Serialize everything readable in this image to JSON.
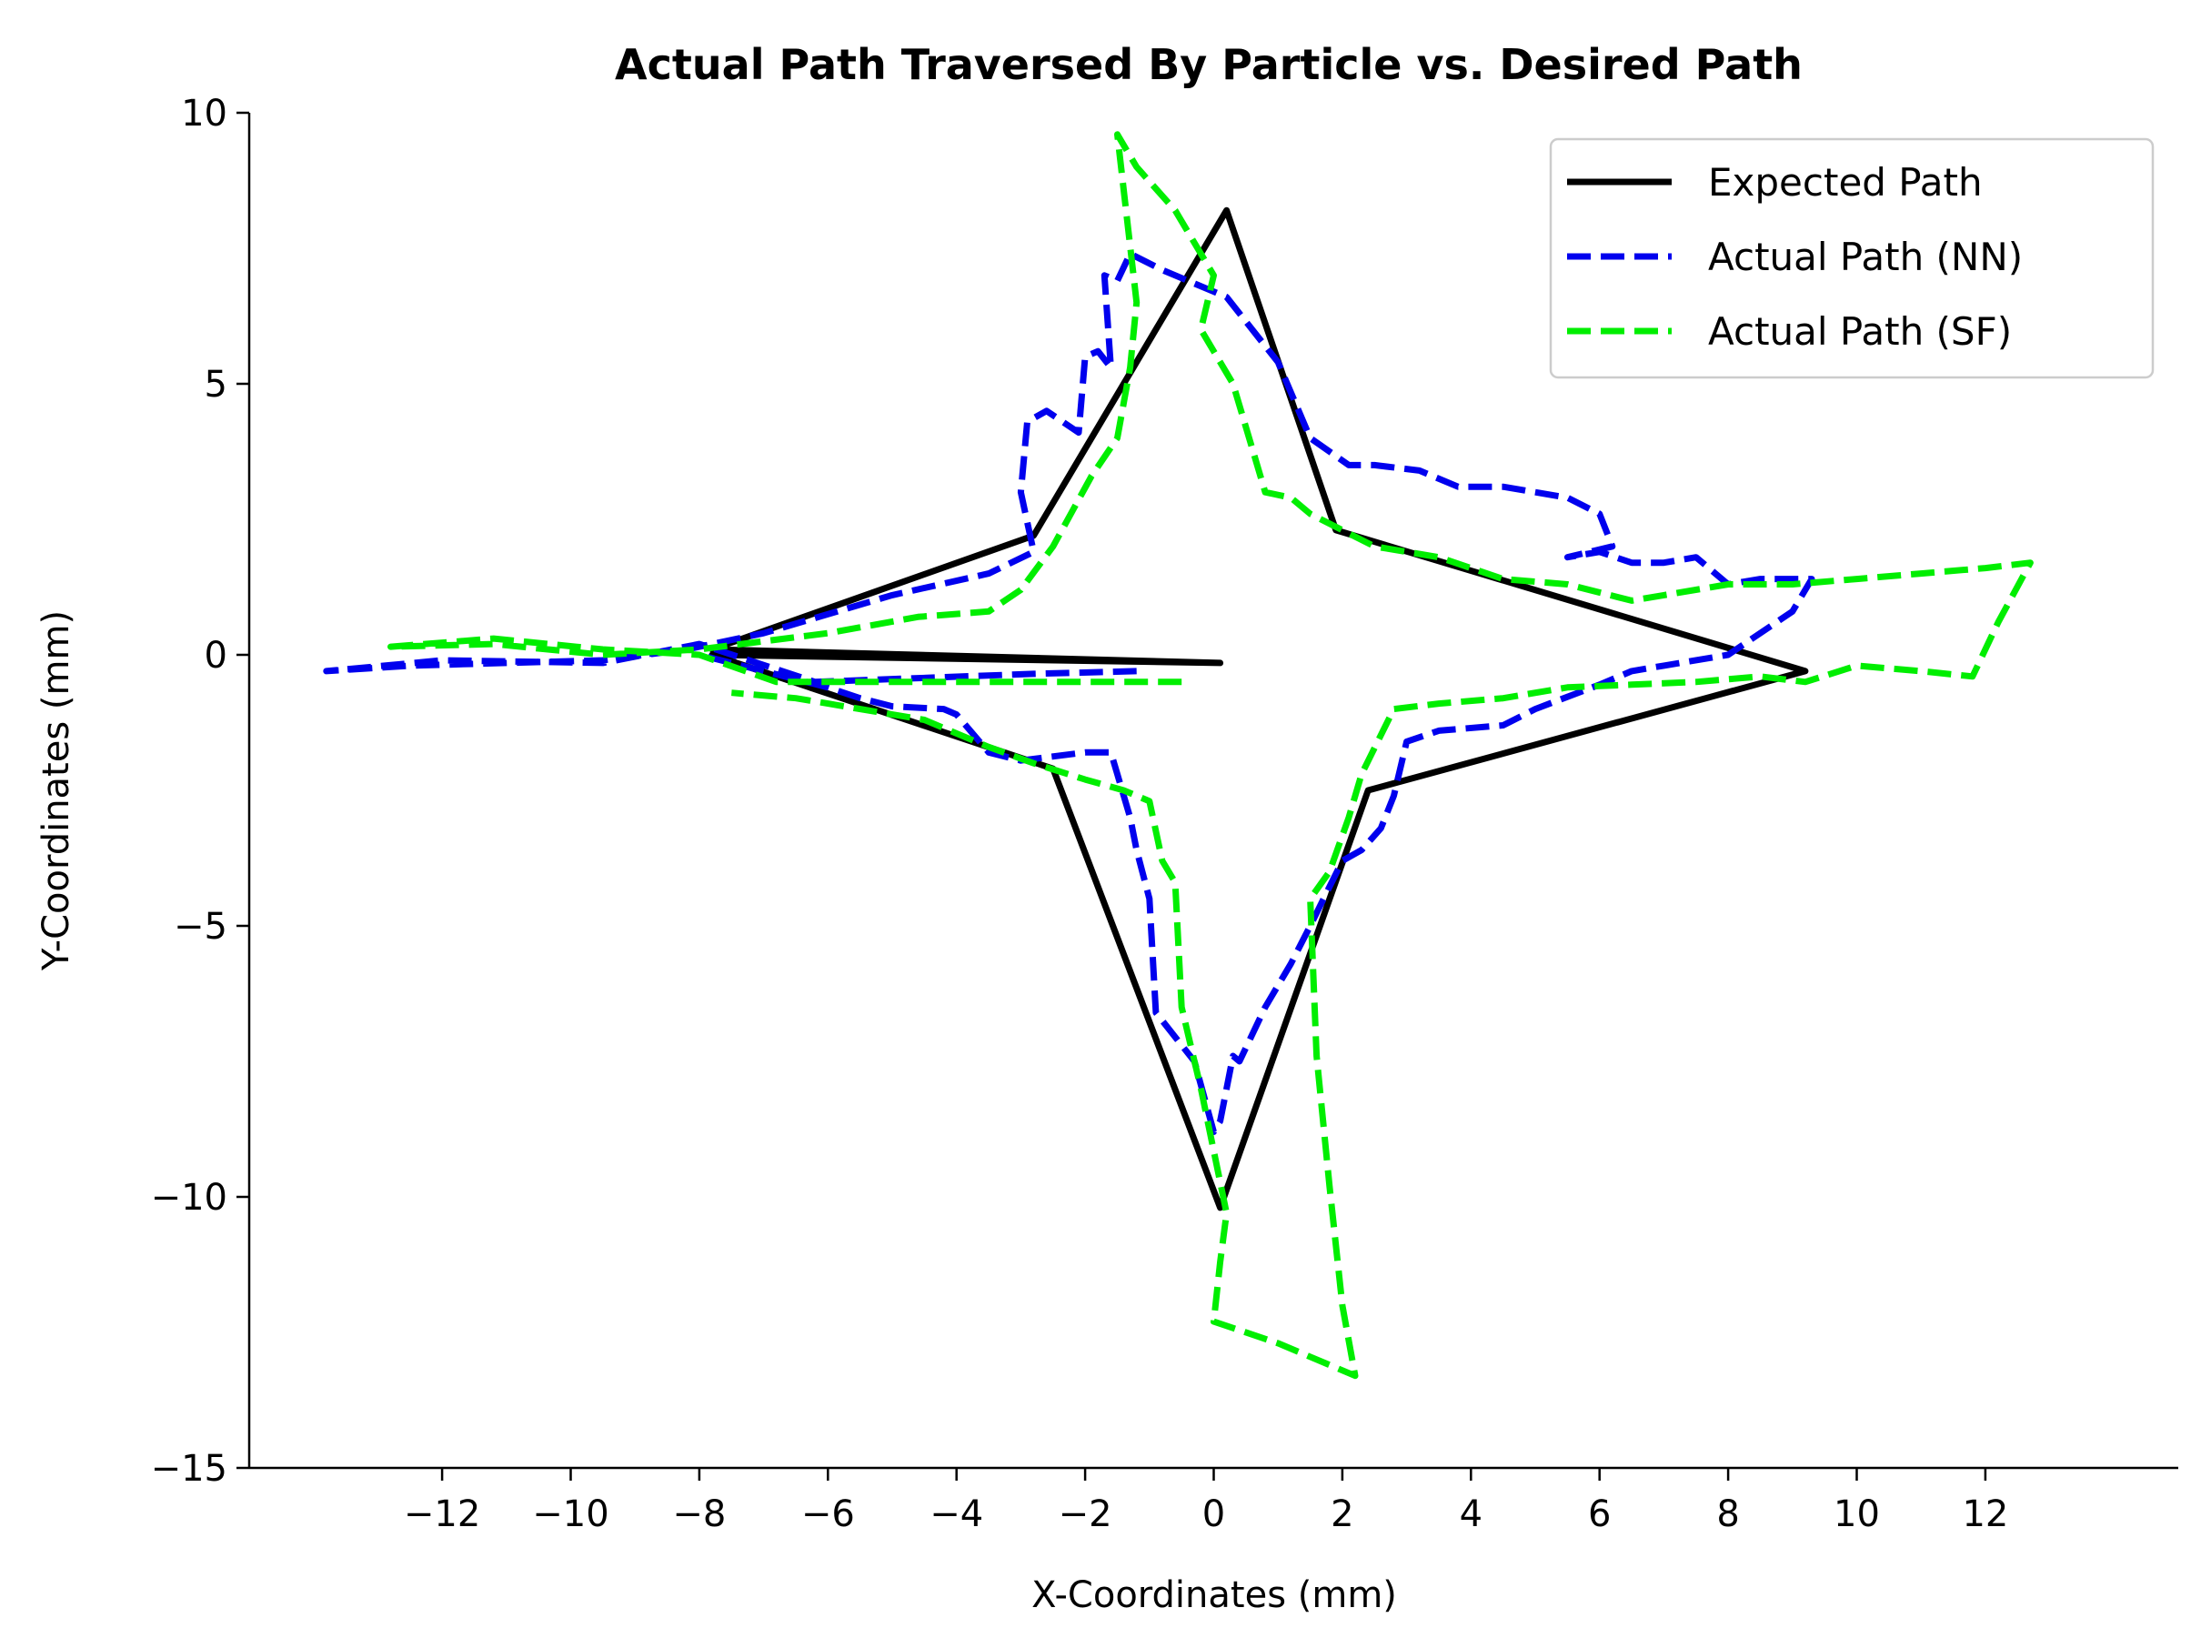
{
  "chart_data": {
    "type": "line",
    "title": "Actual Path Traversed By Particle vs. Desired Path",
    "xlabel": "X-Coordinates (mm)",
    "ylabel": "Y-Coordinates (mm)",
    "xlim": [
      -15,
      15
    ],
    "ylim": [
      -15,
      10
    ],
    "xticks": [
      -12,
      -10,
      -8,
      -6,
      -4,
      -2,
      0,
      2,
      4,
      6,
      8,
      10,
      12
    ],
    "yticks": [
      10,
      5,
      0,
      -5,
      -10,
      -15
    ],
    "xtick_labels": [
      "−12",
      "−10",
      "−8",
      "−6",
      "−4",
      "−2",
      "0",
      "2",
      "4",
      "6",
      "8",
      "10",
      "12"
    ],
    "ytick_labels": [
      "10",
      "5",
      "0",
      "−5",
      "−10",
      "−15"
    ],
    "grid": false,
    "legend_position": "top-right",
    "series": [
      {
        "name": "Expected Path",
        "color": "#000000",
        "style": "solid",
        "x": [
          0.1,
          -7.8,
          -2.8,
          0.2,
          1.9,
          9.2,
          2.4,
          0.1,
          -2.5,
          -7.8,
          0.1
        ],
        "y": [
          -0.15,
          0.1,
          2.2,
          8.2,
          2.3,
          -0.3,
          -2.5,
          -10.2,
          -2.1,
          0.0,
          -0.15
        ]
      },
      {
        "name": "Actual Path (NN)",
        "color": "#0000ee",
        "style": "dashed",
        "x": [
          -1.2,
          -2.8,
          -6.2,
          -8.0,
          -9.5,
          -12.0,
          -13.8,
          -12.5,
          -9.5,
          -8.2,
          -7.0,
          -5.0,
          -3.5,
          -2.8,
          -3.0,
          -2.9,
          -2.6,
          -2.1,
          -2.0,
          -1.8,
          -1.6,
          -1.7,
          -1.5,
          -1.3,
          -0.8,
          0.2,
          1.0,
          1.5,
          2.1,
          2.5,
          3.2,
          3.8,
          4.5,
          5.0,
          5.5,
          6.0,
          6.2,
          5.5,
          6.0,
          6.5,
          7.0,
          7.5,
          8.0,
          8.5,
          9.3,
          9.0,
          8.0,
          7.0,
          6.5,
          6.0,
          5.0,
          4.5,
          3.5,
          3.0,
          2.8,
          2.6,
          2.3,
          2.0,
          1.5,
          1.2,
          0.8,
          0.4,
          0.3,
          0.1,
          0.0,
          -0.3,
          -0.9,
          -1.0,
          -1.2,
          -1.3,
          -1.5,
          -1.6,
          -2.0,
          -3.0,
          -3.5,
          -4.0,
          -4.2,
          -5.0,
          -5.5,
          -6.0,
          -6.5,
          -8.0
        ],
        "y": [
          -0.3,
          -0.35,
          -0.5,
          0.2,
          -0.15,
          -0.1,
          -0.3,
          -0.2,
          -0.1,
          0.1,
          0.4,
          1.1,
          1.5,
          1.9,
          3.0,
          4.3,
          4.5,
          4.1,
          5.5,
          5.6,
          5.3,
          7.0,
          6.9,
          7.4,
          7.1,
          6.6,
          5.4,
          4.0,
          3.5,
          3.5,
          3.4,
          3.1,
          3.1,
          3.0,
          2.9,
          2.6,
          2.0,
          1.8,
          1.9,
          1.7,
          1.7,
          1.8,
          1.3,
          1.4,
          1.4,
          0.8,
          0.0,
          -0.2,
          -0.3,
          -0.55,
          -1.0,
          -1.3,
          -1.4,
          -1.6,
          -2.6,
          -3.2,
          -3.6,
          -3.8,
          -5.0,
          -5.7,
          -6.5,
          -7.5,
          -7.4,
          -8.6,
          -8.8,
          -7.5,
          -6.6,
          -4.5,
          -3.6,
          -3.0,
          -2.2,
          -1.8,
          -1.8,
          -1.95,
          -1.8,
          -1.1,
          -1.0,
          -0.95,
          -0.8,
          -0.6,
          -0.45,
          0.0
        ]
      },
      {
        "name": "Actual Path (SF)",
        "color": "#00ee00",
        "style": "dashed",
        "x": [
          -0.5,
          -3.5,
          -6.8,
          -8.0,
          -9.5,
          -11.2,
          -12.8,
          -11.2,
          -9.5,
          -8.0,
          -6.0,
          -4.6,
          -3.5,
          -3.0,
          -2.5,
          -1.9,
          -1.5,
          -1.3,
          -1.2,
          -1.5,
          -1.2,
          -0.6,
          0.0,
          -0.2,
          0.3,
          0.5,
          0.8,
          1.2,
          1.5,
          2.5,
          3.5,
          4.5,
          5.5,
          6.5,
          7.0,
          8.0,
          9.0,
          10.0,
          11.0,
          12.0,
          12.7,
          12.2,
          11.8,
          11.0,
          10.0,
          9.2,
          8.5,
          7.5,
          6.5,
          5.5,
          4.5,
          3.5,
          2.8,
          2.3,
          2.1,
          1.8,
          1.5,
          1.6,
          1.8,
          2.0,
          2.2,
          1.0,
          0.0,
          0.1,
          0.2,
          -0.2,
          -0.5,
          -0.6,
          -0.8,
          -1.0,
          -1.4,
          -2.0,
          -2.8,
          -3.5,
          -4.5,
          -6.0,
          -6.5,
          -7.5
        ],
        "y": [
          -0.5,
          -0.5,
          -0.5,
          0.0,
          0.1,
          0.3,
          0.15,
          0.2,
          0.0,
          0.1,
          0.4,
          0.7,
          0.8,
          1.2,
          2.0,
          3.3,
          4.0,
          5.3,
          6.5,
          9.6,
          9.0,
          8.2,
          7.0,
          6.0,
          5.0,
          4.2,
          3.0,
          2.9,
          2.6,
          2.0,
          1.8,
          1.4,
          1.3,
          1.0,
          1.1,
          1.3,
          1.3,
          1.4,
          1.5,
          1.6,
          1.7,
          0.6,
          -0.4,
          -0.3,
          -0.2,
          -0.5,
          -0.4,
          -0.5,
          -0.55,
          -0.6,
          -0.8,
          -0.9,
          -1.0,
          -2.2,
          -3.0,
          -4.0,
          -4.5,
          -7.4,
          -9.8,
          -12.0,
          -13.3,
          -12.7,
          -12.3,
          -11.2,
          -10.3,
          -8.0,
          -6.5,
          -4.2,
          -3.8,
          -2.7,
          -2.5,
          -2.3,
          -2.0,
          -1.7,
          -1.2,
          -0.9,
          -0.8,
          -0.7
        ]
      }
    ]
  }
}
